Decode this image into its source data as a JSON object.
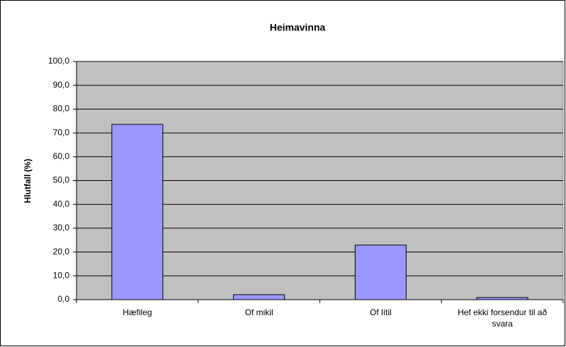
{
  "chart_data": {
    "type": "bar",
    "title": "Heimavinna",
    "ylabel": "Hlutfall (%)",
    "categories": [
      "Hæfileg",
      "Of mikil",
      "Of lítil",
      "Hef ekki forsendur til að svara"
    ],
    "values": [
      73.6,
      2.1,
      22.9,
      0.9
    ],
    "color": "#9999ff",
    "ylim": [
      0,
      100
    ],
    "yticks": [
      {
        "value": 0,
        "label": "0,0"
      },
      {
        "value": 10,
        "label": "10,0"
      },
      {
        "value": 20,
        "label": "20,0"
      },
      {
        "value": 30,
        "label": "30,0"
      },
      {
        "value": 40,
        "label": "40,0"
      },
      {
        "value": 50,
        "label": "50,0"
      },
      {
        "value": 60,
        "label": "60,0"
      },
      {
        "value": 70,
        "label": "70,0"
      },
      {
        "value": 80,
        "label": "80,0"
      },
      {
        "value": 90,
        "label": "90,0"
      },
      {
        "value": 100,
        "label": "100,0"
      }
    ],
    "grid": true
  }
}
